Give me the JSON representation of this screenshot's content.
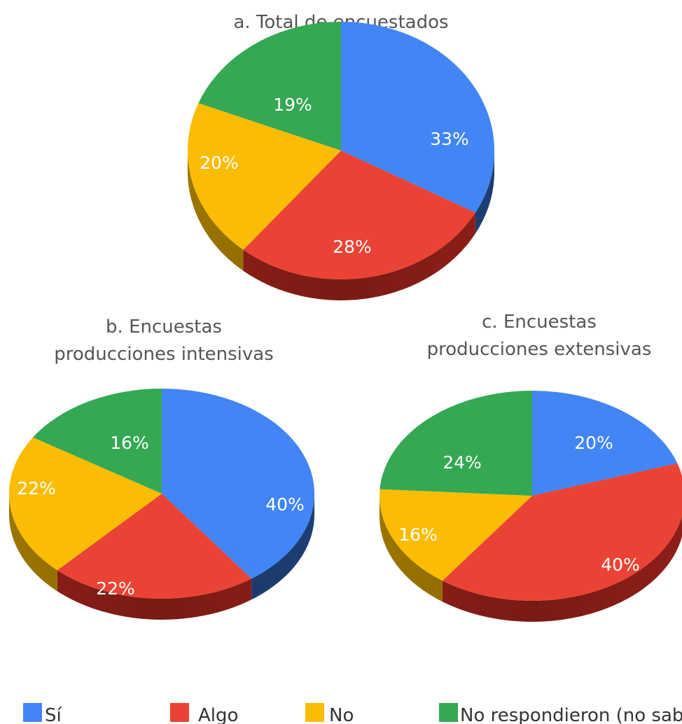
{
  "colors": {
    "si": "#4285F4",
    "si_side": "#1D3E73",
    "algo": "#EA4335",
    "algo_side": "#8E1F18",
    "no": "#FBBC04",
    "no_side": "#9C7500",
    "nr": "#34A853",
    "nr_side": "#1C5E2D"
  },
  "legend": {
    "si": "Sí",
    "algo": "Algo",
    "no": "No",
    "nr": "No respondieron (no sabe)"
  },
  "chart_data": [
    {
      "type": "pie",
      "title_lines": [
        "a. Total de encuestados"
      ],
      "series": [
        "Sí",
        "Algo",
        "No",
        "No respondieron (no sabe)"
      ],
      "values": [
        33,
        28,
        20,
        19
      ],
      "labels": [
        "33%",
        "28%",
        "20%",
        "19%"
      ]
    },
    {
      "type": "pie",
      "title_lines": [
        "b. Encuestas",
        "producciones intensivas"
      ],
      "series": [
        "Sí",
        "Algo",
        "No",
        "No respondieron (no sabe)"
      ],
      "values": [
        40,
        22,
        22,
        16
      ],
      "labels": [
        "40%",
        "22%",
        "22%",
        "16%"
      ]
    },
    {
      "type": "pie",
      "title_lines": [
        "c. Encuestas",
        "producciones extensivas"
      ],
      "series": [
        "Sí",
        "Algo",
        "No",
        "No respondieron (no sabe)"
      ],
      "values": [
        20,
        40,
        16,
        24
      ],
      "labels": [
        "20%",
        "40%",
        "16%",
        "24%"
      ]
    }
  ]
}
